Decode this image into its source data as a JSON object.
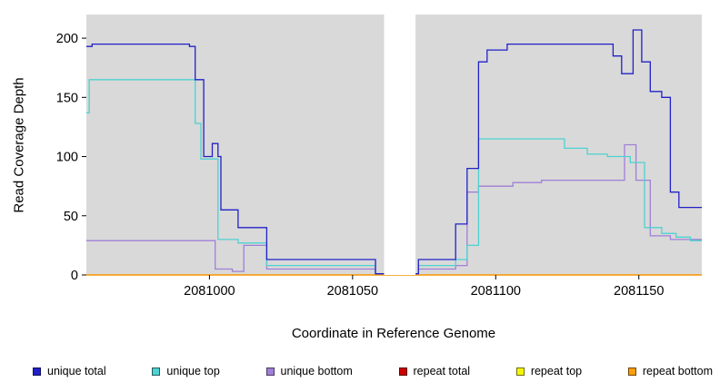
{
  "chart_data": {
    "type": "line",
    "title": "",
    "xlabel": "Coordinate in Reference Genome",
    "ylabel": "Read Coverage Depth",
    "xlim": [
      2080957,
      2081172
    ],
    "ylim": [
      0,
      220
    ],
    "xticks": [
      2081000,
      2081050,
      2081100,
      2081150
    ],
    "yticks": [
      0,
      50,
      100,
      150,
      200
    ],
    "plot_bg": "#d9d9d9",
    "grid": "off",
    "legend_position": "bottom",
    "step_mode": "after",
    "gap_region": [
      2081061,
      2081072
    ],
    "series": [
      {
        "name": "unique total",
        "color": "#2121c8",
        "points": [
          [
            2080957,
            193
          ],
          [
            2080959,
            195
          ],
          [
            2080993,
            193
          ],
          [
            2080995,
            165
          ],
          [
            2080998,
            100
          ],
          [
            2081001,
            111
          ],
          [
            2081003,
            100
          ],
          [
            2081004,
            55
          ],
          [
            2081010,
            40
          ],
          [
            2081020,
            13
          ],
          [
            2081058,
            1
          ],
          [
            2081073,
            13
          ],
          [
            2081086,
            43
          ],
          [
            2081090,
            90
          ],
          [
            2081094,
            180
          ],
          [
            2081097,
            190
          ],
          [
            2081104,
            195
          ],
          [
            2081141,
            185
          ],
          [
            2081144,
            170
          ],
          [
            2081148,
            207
          ],
          [
            2081151,
            180
          ],
          [
            2081154,
            155
          ],
          [
            2081158,
            150
          ],
          [
            2081161,
            70
          ],
          [
            2081164,
            57
          ]
        ]
      },
      {
        "name": "unique top",
        "color": "#4fd1d1",
        "points": [
          [
            2080957,
            137
          ],
          [
            2080958,
            165
          ],
          [
            2080995,
            128
          ],
          [
            2080997,
            98
          ],
          [
            2081003,
            30
          ],
          [
            2081010,
            27
          ],
          [
            2081020,
            8
          ],
          [
            2081058,
            1
          ],
          [
            2081073,
            8
          ],
          [
            2081086,
            13
          ],
          [
            2081090,
            25
          ],
          [
            2081094,
            115
          ],
          [
            2081124,
            107
          ],
          [
            2081132,
            102
          ],
          [
            2081139,
            100
          ],
          [
            2081147,
            95
          ],
          [
            2081152,
            40
          ],
          [
            2081158,
            35
          ],
          [
            2081163,
            32
          ],
          [
            2081168,
            29
          ]
        ]
      },
      {
        "name": "unique bottom",
        "color": "#a07fd8",
        "points": [
          [
            2080957,
            29
          ],
          [
            2081002,
            5
          ],
          [
            2081008,
            3
          ],
          [
            2081012,
            25
          ],
          [
            2081020,
            5
          ],
          [
            2081058,
            1
          ],
          [
            2081073,
            5
          ],
          [
            2081086,
            8
          ],
          [
            2081090,
            70
          ],
          [
            2081094,
            75
          ],
          [
            2081106,
            78
          ],
          [
            2081116,
            80
          ],
          [
            2081145,
            110
          ],
          [
            2081149,
            80
          ],
          [
            2081154,
            33
          ],
          [
            2081161,
            30
          ]
        ]
      },
      {
        "name": "repeat total",
        "color": "#cc0000",
        "points": [
          [
            2080957,
            0
          ]
        ]
      },
      {
        "name": "repeat top",
        "color": "#f5f50a",
        "points": [
          [
            2080957,
            0
          ]
        ]
      },
      {
        "name": "repeat bottom",
        "color": "#ff9d0a",
        "points": [
          [
            2080957,
            0
          ]
        ]
      }
    ]
  }
}
